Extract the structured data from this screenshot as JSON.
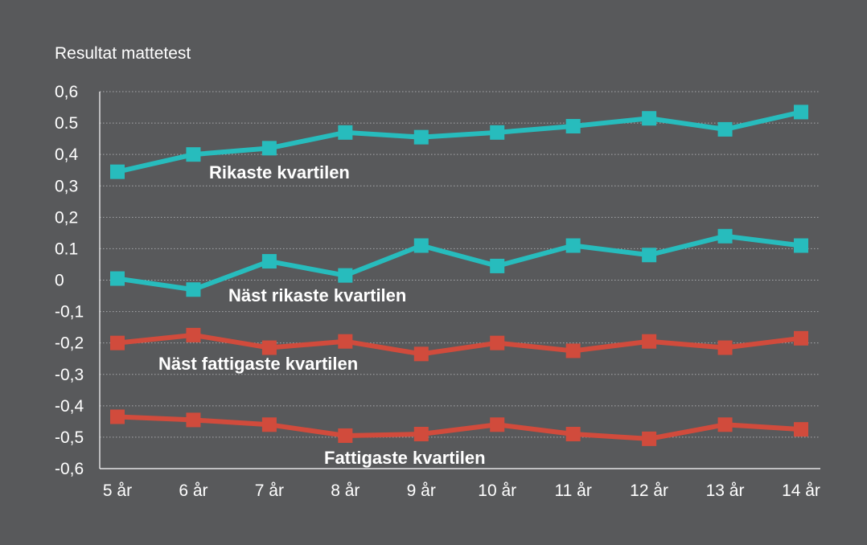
{
  "chart_data": {
    "type": "line",
    "ylabel": "Resultat mattetest",
    "categories": [
      "5 år",
      "6 år",
      "7 år",
      "8 år",
      "9 år",
      "10 år",
      "11 år",
      "12 år",
      "13 år",
      "14 år"
    ],
    "ylim": [
      -0.6,
      0.6
    ],
    "yticks": [
      0.6,
      0.5,
      0.4,
      0.3,
      0.2,
      0.1,
      0,
      -0.1,
      -0.2,
      -0.3,
      -0.4,
      -0.5,
      -0.6
    ],
    "ytick_labels": [
      "0,6",
      "0.5",
      "0,4",
      "0,3",
      "0,2",
      "0.1",
      "0",
      "-0,1",
      "-0,2",
      "-0,3",
      "-0,4",
      "-0,5",
      "-0,6"
    ],
    "grid": true,
    "series": [
      {
        "name": "Rikaste kvartilen",
        "color": "#27bcbd",
        "values": [
          0.345,
          0.4,
          0.42,
          0.47,
          0.455,
          0.47,
          0.49,
          0.515,
          0.48,
          0.535
        ]
      },
      {
        "name": "Näst rikaste kvartilen",
        "color": "#27bcbd",
        "values": [
          0.005,
          -0.03,
          0.06,
          0.015,
          0.11,
          0.045,
          0.11,
          0.08,
          0.14,
          0.11
        ]
      },
      {
        "name": "Näst fattigaste kvartilen",
        "color": "#d14b3c",
        "values": [
          -0.2,
          -0.175,
          -0.215,
          -0.195,
          -0.235,
          -0.2,
          -0.225,
          -0.195,
          -0.215,
          -0.185
        ]
      },
      {
        "name": "Fattigaste kvartilen",
        "color": "#d14b3c",
        "values": [
          -0.435,
          -0.445,
          -0.46,
          -0.495,
          -0.49,
          -0.46,
          -0.49,
          -0.505,
          -0.46,
          -0.475
        ]
      }
    ]
  }
}
